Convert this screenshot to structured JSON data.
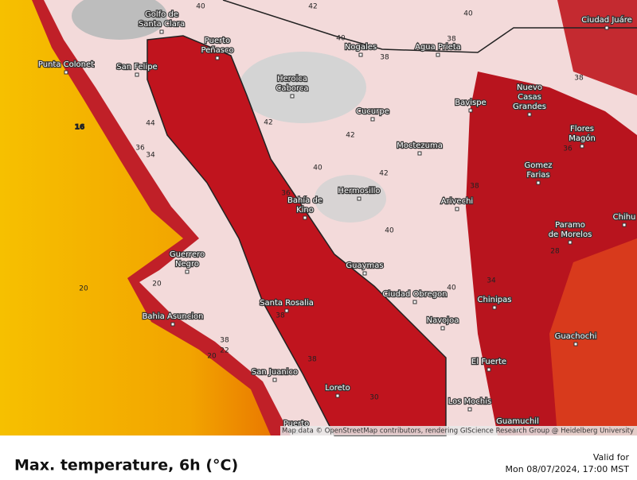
{
  "map": {
    "cities": [
      [
        "Golfo de",
        "Santa Clara"
      ],
      [
        "Puerto",
        "Peñasco"
      ],
      [
        "Punta Colonet"
      ],
      [
        "San Felipe"
      ],
      [
        "Heroica",
        "Caborca"
      ],
      [
        "Nogales"
      ],
      [
        "Agua Prieta"
      ],
      [
        "Ciudad Juáre"
      ],
      [
        "Cucurpe"
      ],
      [
        "Bavispe"
      ],
      [
        "Nuevo",
        "Casas",
        "Grandes"
      ],
      [
        "Moctezuma"
      ],
      [
        "Flores",
        "Magón"
      ],
      [
        "Gomez",
        "Farias"
      ],
      [
        "Hermosillo"
      ],
      [
        "Bahía de",
        "Kino"
      ],
      [
        "Arivechi"
      ],
      [
        "Chihu"
      ],
      [
        "Paramo",
        "de Morelos"
      ],
      [
        "Guerrero",
        "Negro"
      ],
      [
        "Guaymas"
      ],
      [
        "Ciudad Obregon"
      ],
      [
        "Chinipas"
      ],
      [
        "Santa Rosalia"
      ],
      [
        "Bahia Asuncion"
      ],
      [
        "Navojoa"
      ],
      [
        "Guachochi"
      ],
      [
        "El Fuerte"
      ],
      [
        "San Juanico"
      ],
      [
        "Loreto"
      ],
      [
        "Los Mochis"
      ],
      [
        "Puerto"
      ],
      [
        "Guamuchil"
      ]
    ],
    "contour_labels": [
      "40",
      "42",
      "40",
      "38",
      "40",
      "38",
      "38",
      "44",
      "42",
      "42",
      "36",
      "34",
      "16",
      "40",
      "42",
      "36",
      "38",
      "36",
      "40",
      "20",
      "20",
      "38",
      "38",
      "22",
      "20",
      "38",
      "30",
      "34",
      "40",
      "28"
    ],
    "attribution": "Map data © OpenStreetMap contributors, rendering GIScience Research Group @ Heidelberg University",
    "title": "Max. temperature, 6h (°C)",
    "valid_label": "Valid for",
    "valid_time": "Mon 08/07/2024, 17:00 MST"
  }
}
